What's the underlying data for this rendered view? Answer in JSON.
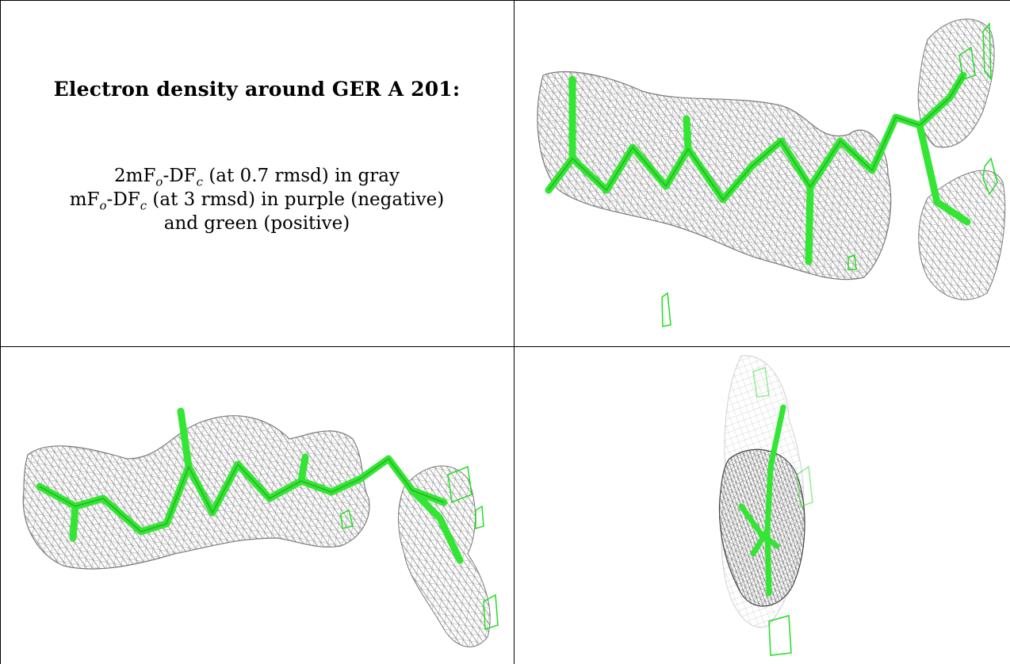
{
  "caption": {
    "title": "Electron density around GER A 201:",
    "line1": "2mFₒ-DF꜀ (at 0.7 rmsd) in gray",
    "line2": "mFₒ-DF꜀ (at 3 rmsd) in purple (negative)",
    "line3": "and green (positive)"
  },
  "colors": {
    "mesh_gray": "#8a8a8a",
    "model_green": "#33e633",
    "diff_green": "#22dd22",
    "border": "#000000"
  },
  "panels": [
    {
      "name": "density-view-1",
      "content": "stick model with gray mesh"
    },
    {
      "name": "density-view-2",
      "content": "stick model with gray mesh"
    },
    {
      "name": "density-view-3",
      "content": "end-on view"
    }
  ]
}
